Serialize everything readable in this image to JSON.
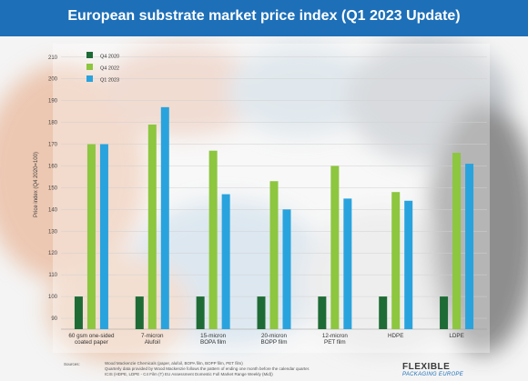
{
  "title": "European substrate market price index (Q1 2023 Update)",
  "colors": {
    "header_bg": "#1d6fb8",
    "q4_2020": "#1e6b35",
    "q4_2022": "#8dc63f",
    "q1_2023": "#29a3dd"
  },
  "chart_data": {
    "type": "bar",
    "ylabel": "Price index (Q4 2020=100)",
    "ylim": [
      85,
      212
    ],
    "yticks": [
      90,
      100,
      110,
      120,
      130,
      140,
      150,
      160,
      170,
      180,
      190,
      200,
      210
    ],
    "legend_position": "top-left",
    "categories": [
      [
        "60 gsm one-sided",
        "coated paper"
      ],
      [
        "7-micron",
        "Alufoil"
      ],
      [
        "15-micron",
        "BOPA film"
      ],
      [
        "20-micron",
        "BOPP film"
      ],
      [
        "12-micron",
        "PET film"
      ],
      [
        "HDPE"
      ],
      [
        "LDPE"
      ]
    ],
    "series": [
      {
        "name": "Q4 2020",
        "values": [
          100,
          100,
          100,
          100,
          100,
          100,
          100
        ]
      },
      {
        "name": "Q4 2022",
        "values": [
          170,
          179,
          167,
          153,
          160,
          148,
          166
        ]
      },
      {
        "name": "Q1 2023",
        "values": [
          170,
          187,
          147,
          140,
          145,
          144,
          161
        ]
      }
    ]
  },
  "footer": {
    "source_label": "Sources:",
    "lines": [
      "Wood Mackenzie Chemicals (paper, alufoil, BOPA film, BOPP film, PET film)",
      "Quarterly data provided by Wood Mackenzie follows the pattern of ending one month before the calendar quarter.",
      "ICIS (HDPE, LDPE - C4 Film (T) EU Assessment Domestic Full Market Range Weekly (Mid))"
    ],
    "logo_top": "FLEXIBLE",
    "logo_bottom": "PACKAGING EUROPE"
  }
}
